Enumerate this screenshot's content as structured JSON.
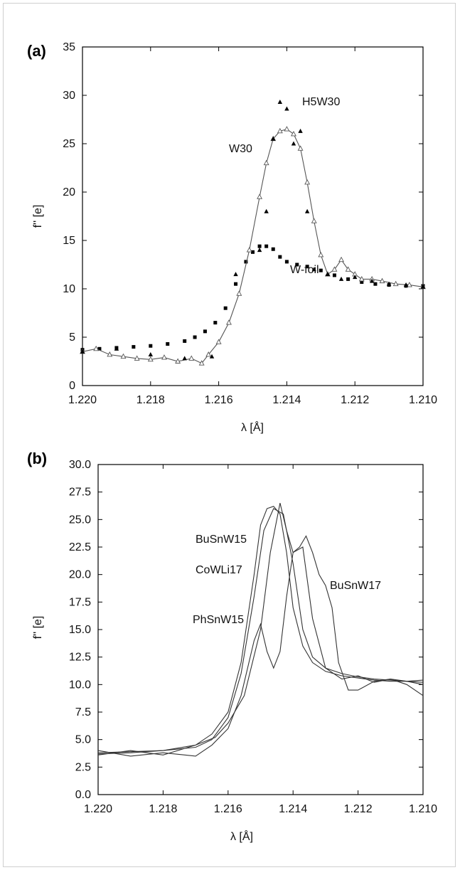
{
  "chart_data": [
    {
      "panel_label": "(a)",
      "type": "scatter",
      "xlabel": "λ [Å]",
      "ylabel": "f'' [e]",
      "xlim": [
        1.22,
        1.21
      ],
      "ylim": [
        0,
        35
      ],
      "x_ticks": [
        "1.220",
        "1.218",
        "1.216",
        "1.214",
        "1.212",
        "1.210"
      ],
      "y_ticks": [
        "0",
        "5",
        "10",
        "15",
        "20",
        "25",
        "30",
        "35"
      ],
      "series": [
        {
          "name": "W-foil",
          "marker": "filled-square",
          "color": "#000000",
          "x": [
            1.22,
            1.2195,
            1.219,
            1.2185,
            1.218,
            1.2175,
            1.217,
            1.2167,
            1.2164,
            1.2161,
            1.2158,
            1.2155,
            1.2152,
            1.215,
            1.2148,
            1.2146,
            1.2144,
            1.2142,
            1.214,
            1.2137,
            1.2134,
            1.213,
            1.2126,
            1.2122,
            1.2118,
            1.2114,
            1.211,
            1.2105,
            1.21
          ],
          "y": [
            3.7,
            3.8,
            3.9,
            4.0,
            4.1,
            4.3,
            4.6,
            5.0,
            5.6,
            6.5,
            8.0,
            10.5,
            12.8,
            13.8,
            14.4,
            14.4,
            14.1,
            13.3,
            12.8,
            12.5,
            12.3,
            11.9,
            11.4,
            11.0,
            10.7,
            10.5,
            10.4,
            10.3,
            10.3
          ]
        },
        {
          "name": "W30",
          "marker": "open-triangle",
          "line": true,
          "color": "#555555",
          "x": [
            1.22,
            1.2196,
            1.2192,
            1.2188,
            1.2184,
            1.218,
            1.2176,
            1.2172,
            1.2168,
            1.2165,
            1.2163,
            1.216,
            1.2157,
            1.2154,
            1.2151,
            1.2148,
            1.2146,
            1.2144,
            1.2142,
            1.214,
            1.2138,
            1.2136,
            1.2134,
            1.2132,
            1.213,
            1.2128,
            1.2126,
            1.2124,
            1.2122,
            1.212,
            1.2118,
            1.2115,
            1.2112,
            1.2108,
            1.2104,
            1.21
          ],
          "y": [
            3.5,
            3.8,
            3.2,
            3.0,
            2.8,
            2.7,
            2.9,
            2.5,
            2.8,
            2.3,
            3.2,
            4.5,
            6.5,
            9.5,
            14.0,
            19.5,
            23.0,
            25.5,
            26.3,
            26.5,
            26.0,
            24.5,
            21.0,
            17.0,
            13.5,
            11.5,
            12.0,
            13.0,
            12.0,
            11.5,
            11.0,
            11.0,
            10.8,
            10.5,
            10.4,
            10.2
          ]
        },
        {
          "name": "H5W30",
          "marker": "filled-triangle",
          "color": "#000000",
          "x": [
            1.22,
            1.219,
            1.218,
            1.217,
            1.2162,
            1.2155,
            1.2148,
            1.2146,
            1.2144,
            1.2142,
            1.214,
            1.2138,
            1.2136,
            1.2134,
            1.2132,
            1.2128,
            1.2124,
            1.212,
            1.2115,
            1.211,
            1.2105,
            1.21
          ],
          "y": [
            3.5,
            3.8,
            3.2,
            2.8,
            3.0,
            11.5,
            14.0,
            18.0,
            25.5,
            29.3,
            28.6,
            25.0,
            26.3,
            18.0,
            12.0,
            11.5,
            11.0,
            11.2,
            10.8,
            10.5,
            10.4,
            10.2
          ]
        }
      ],
      "annotations": [
        "H5W30",
        "W30",
        "W-foil"
      ]
    },
    {
      "panel_label": "(b)",
      "type": "line",
      "xlabel": "λ [Å]",
      "ylabel": "f'' [e]",
      "xlim": [
        1.22,
        1.21
      ],
      "ylim": [
        0,
        30
      ],
      "x_ticks": [
        "1.220",
        "1.218",
        "1.216",
        "1.214",
        "1.212",
        "1.210"
      ],
      "y_ticks": [
        "0.0",
        "2.5",
        "5.0",
        "7.5",
        "10.0",
        "12.5",
        "15.0",
        "17.5",
        "20.0",
        "22.5",
        "25.0",
        "27.5",
        "30.0"
      ],
      "series": [
        {
          "name": "BuSnW15",
          "x": [
            1.22,
            1.219,
            1.218,
            1.217,
            1.2165,
            1.216,
            1.2156,
            1.2152,
            1.215,
            1.2148,
            1.2146,
            1.2144,
            1.2142,
            1.214,
            1.2137,
            1.2134,
            1.213,
            1.2125,
            1.212,
            1.2115,
            1.211,
            1.2105,
            1.21
          ],
          "y": [
            3.8,
            3.9,
            4.0,
            4.5,
            5.5,
            7.5,
            12.0,
            20.0,
            24.5,
            26.0,
            26.2,
            25.5,
            22.0,
            17.0,
            13.5,
            12.0,
            11.2,
            10.8,
            10.6,
            10.4,
            10.3,
            10.3,
            10.2
          ]
        },
        {
          "name": "CoWLi17",
          "x": [
            1.22,
            1.219,
            1.218,
            1.217,
            1.2165,
            1.216,
            1.2156,
            1.2152,
            1.2149,
            1.2146,
            1.2143,
            1.214,
            1.2137,
            1.2134,
            1.213,
            1.2125,
            1.212,
            1.2115,
            1.211,
            1.2105,
            1.21
          ],
          "y": [
            3.7,
            3.8,
            4.0,
            4.3,
            5.0,
            7.0,
            11.0,
            18.0,
            24.0,
            26.0,
            25.5,
            21.0,
            15.0,
            12.5,
            11.5,
            11.0,
            10.7,
            10.5,
            10.4,
            10.3,
            10.4
          ]
        },
        {
          "name": "PhSnW15",
          "x": [
            1.22,
            1.219,
            1.218,
            1.217,
            1.2165,
            1.216,
            1.2156,
            1.2152,
            1.215,
            1.2148,
            1.2146,
            1.2144,
            1.2142,
            1.214,
            1.2137,
            1.2134,
            1.213,
            1.2125,
            1.212,
            1.2115,
            1.211,
            1.2105,
            1.21
          ],
          "y": [
            4.0,
            3.5,
            3.8,
            3.5,
            4.5,
            6.0,
            9.0,
            14.0,
            15.5,
            13.0,
            11.5,
            13.0,
            18.0,
            22.0,
            22.5,
            16.0,
            11.5,
            10.5,
            10.8,
            10.2,
            10.5,
            10.0,
            9.0
          ]
        },
        {
          "name": "BuSnW17",
          "x": [
            1.22,
            1.219,
            1.218,
            1.217,
            1.2164,
            1.216,
            1.2155,
            1.215,
            1.2147,
            1.2144,
            1.2142,
            1.214,
            1.2138,
            1.2136,
            1.2134,
            1.2132,
            1.213,
            1.2128,
            1.2126,
            1.2123,
            1.212,
            1.2115,
            1.211,
            1.2105,
            1.21
          ],
          "y": [
            3.6,
            4.0,
            3.6,
            4.5,
            5.2,
            6.5,
            9.0,
            15.0,
            22.0,
            26.5,
            24.0,
            22.0,
            22.5,
            23.5,
            22.0,
            20.0,
            19.0,
            17.0,
            12.0,
            9.5,
            9.5,
            10.3,
            10.5,
            10.3,
            10.0
          ]
        }
      ],
      "annotations": [
        "BuSnW15",
        "CoWLi17",
        "PhSnW15",
        "BuSnW17"
      ]
    }
  ]
}
